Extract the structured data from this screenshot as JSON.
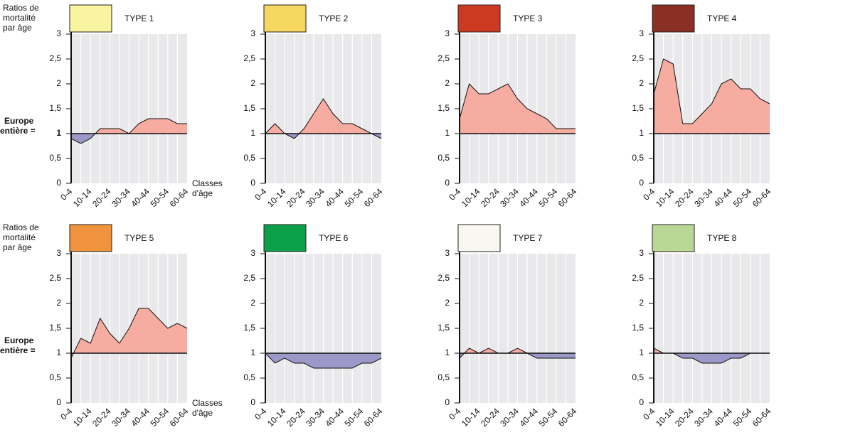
{
  "chart_data": [
    {
      "type": "area",
      "title": "TYPE 1",
      "swatch": "#f8f4a0",
      "y_label": [
        "Ratios de",
        "mortalité",
        "par âge"
      ],
      "annotation": [
        "Europe",
        "entière ="
      ],
      "x_label": [
        "Classes",
        "d'âge"
      ],
      "categories": [
        "0-4",
        null,
        "10-14",
        null,
        "20-24",
        null,
        "30-34",
        null,
        "40-44",
        null,
        "50-54",
        null,
        "60-64"
      ],
      "values": [
        0.9,
        0.8,
        0.9,
        1.1,
        1.1,
        1.1,
        1.0,
        1.2,
        1.3,
        1.3,
        1.3,
        1.2,
        1.2
      ],
      "reference": 1,
      "above_color": "#f6aca0",
      "below_color": "#9c98c8",
      "ylim": [
        0,
        3
      ],
      "yticks": [
        0,
        {
          "value": 0.5,
          "label": "0,5"
        },
        1,
        {
          "value": 1.5,
          "label": "1,5"
        },
        2,
        {
          "value": 2.5,
          "label": "2,5"
        },
        3
      ]
    },
    {
      "type": "area",
      "title": "TYPE 2",
      "swatch": "#f6d860",
      "categories": [
        "0-4",
        null,
        "10-14",
        null,
        "20-24",
        null,
        "30-34",
        null,
        "40-44",
        null,
        "50-54",
        null,
        "60-64"
      ],
      "values": [
        1.0,
        1.2,
        1.0,
        0.9,
        1.1,
        1.4,
        1.7,
        1.4,
        1.2,
        1.2,
        1.1,
        1.0,
        0.9
      ],
      "reference": 1,
      "above_color": "#f6aca0",
      "below_color": "#9c98c8",
      "ylim": [
        0,
        3
      ],
      "yticks": [
        0,
        {
          "value": 0.5,
          "label": "0,5"
        },
        1,
        {
          "value": 1.5,
          "label": "1,5"
        },
        2,
        {
          "value": 2.5,
          "label": "2,5"
        },
        3
      ]
    },
    {
      "type": "area",
      "title": "TYPE 3",
      "swatch": "#cc3a22",
      "categories": [
        "0-4",
        null,
        "10-14",
        null,
        "20-24",
        null,
        "30-34",
        null,
        "40-44",
        null,
        "50-54",
        null,
        "60-64"
      ],
      "values": [
        1.3,
        2.0,
        1.8,
        1.8,
        1.9,
        2.0,
        1.7,
        1.5,
        1.4,
        1.3,
        1.1,
        1.1,
        1.1
      ],
      "reference": 1,
      "above_color": "#f6aca0",
      "below_color": "#9c98c8",
      "ylim": [
        0,
        3
      ],
      "yticks": [
        0,
        {
          "value": 0.5,
          "label": "0,5"
        },
        1,
        {
          "value": 1.5,
          "label": "1,5"
        },
        2,
        {
          "value": 2.5,
          "label": "2,5"
        },
        3
      ]
    },
    {
      "type": "area",
      "title": "TYPE 4",
      "swatch": "#8b2e24",
      "categories": [
        "0-4",
        null,
        "10-14",
        null,
        "20-24",
        null,
        "30-34",
        null,
        "40-44",
        null,
        "50-54",
        null,
        "60-64"
      ],
      "values": [
        1.8,
        2.5,
        2.4,
        1.2,
        1.2,
        1.4,
        1.6,
        2.0,
        2.1,
        1.9,
        1.9,
        1.7,
        1.6
      ],
      "reference": 1,
      "above_color": "#f6aca0",
      "below_color": "#9c98c8",
      "ylim": [
        0,
        3
      ],
      "yticks": [
        0,
        {
          "value": 0.5,
          "label": "0,5"
        },
        1,
        {
          "value": 1.5,
          "label": "1,5"
        },
        2,
        {
          "value": 2.5,
          "label": "2,5"
        },
        3
      ]
    },
    {
      "type": "area",
      "title": "TYPE 5",
      "swatch": "#ef943c",
      "y_label": [
        "Ratios de",
        "mortalité",
        "par âge"
      ],
      "annotation": [
        "Europe",
        "entière ="
      ],
      "x_label": [
        "Classes",
        "d'âge"
      ],
      "categories": [
        "0-4",
        null,
        "10-14",
        null,
        "20-24",
        null,
        "30-34",
        null,
        "40-44",
        null,
        "50-54",
        null,
        "60-64"
      ],
      "values": [
        0.9,
        1.3,
        1.2,
        1.7,
        1.4,
        1.2,
        1.5,
        1.9,
        1.9,
        1.7,
        1.5,
        1.6,
        1.5
      ],
      "reference": 1,
      "above_color": "#f6aca0",
      "below_color": "#9c98c8",
      "ylim": [
        0,
        3
      ],
      "yticks": [
        0,
        {
          "value": 0.5,
          "label": "0,5"
        },
        1,
        {
          "value": 1.5,
          "label": "1,5"
        },
        2,
        {
          "value": 2.5,
          "label": "2,5"
        },
        3
      ]
    },
    {
      "type": "area",
      "title": "TYPE 6",
      "swatch": "#0aa04a",
      "categories": [
        "0-4",
        null,
        "10-14",
        null,
        "20-24",
        null,
        "30-34",
        null,
        "40-44",
        null,
        "50-54",
        null,
        "60-64"
      ],
      "values": [
        1.0,
        0.8,
        0.9,
        0.8,
        0.8,
        0.7,
        0.7,
        0.7,
        0.7,
        0.7,
        0.8,
        0.8,
        0.9
      ],
      "reference": 1,
      "above_color": "#f6aca0",
      "below_color": "#9c98c8",
      "ylim": [
        0,
        3
      ],
      "yticks": [
        0,
        {
          "value": 0.5,
          "label": "0,5"
        },
        1,
        {
          "value": 1.5,
          "label": "1,5"
        },
        2,
        {
          "value": 2.5,
          "label": "2,5"
        },
        3
      ]
    },
    {
      "type": "area",
      "title": "TYPE 7",
      "swatch": "#f8f8f0",
      "categories": [
        "0-4",
        null,
        "10-14",
        null,
        "20-24",
        null,
        "30-34",
        null,
        "40-44",
        null,
        "50-54",
        null,
        "60-64"
      ],
      "values": [
        0.9,
        1.1,
        1.0,
        1.1,
        1.0,
        1.0,
        1.1,
        1.0,
        0.9,
        0.9,
        0.9,
        0.9,
        0.9
      ],
      "reference": 1,
      "above_color": "#f6aca0",
      "below_color": "#9c98c8",
      "ylim": [
        0,
        3
      ],
      "yticks": [
        0,
        {
          "value": 0.5,
          "label": "0,5"
        },
        1,
        {
          "value": 1.5,
          "label": "1,5"
        },
        2,
        {
          "value": 2.5,
          "label": "2,5"
        },
        3
      ]
    },
    {
      "type": "area",
      "title": "TYPE 8",
      "swatch": "#b9d795",
      "categories": [
        "0-4",
        null,
        "10-14",
        null,
        "20-24",
        null,
        "30-34",
        null,
        "40-44",
        null,
        "50-54",
        null,
        "60-64"
      ],
      "values": [
        1.1,
        1.0,
        1.0,
        0.9,
        0.9,
        0.8,
        0.8,
        0.8,
        0.9,
        0.9,
        1.0,
        1.0,
        1.0
      ],
      "reference": 1,
      "above_color": "#f6aca0",
      "below_color": "#9c98c8",
      "ylim": [
        0,
        3
      ],
      "yticks": [
        0,
        {
          "value": 0.5,
          "label": "0,5"
        },
        1,
        {
          "value": 1.5,
          "label": "1,5"
        },
        2,
        {
          "value": 2.5,
          "label": "2,5"
        },
        3
      ]
    }
  ]
}
